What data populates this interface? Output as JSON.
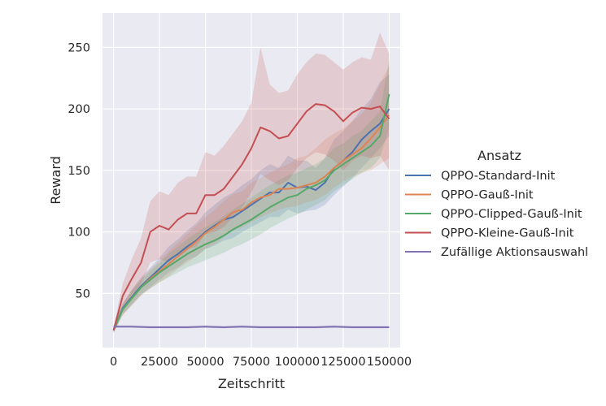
{
  "chart_data": {
    "type": "line",
    "xlabel": "Zeitschritt",
    "ylabel": "Reward",
    "xlim": [
      -6000,
      156000
    ],
    "ylim": [
      6,
      278
    ],
    "xticks": [
      0,
      25000,
      50000,
      75000,
      100000,
      125000,
      150000
    ],
    "yticks": [
      50,
      100,
      150,
      200,
      250
    ],
    "grid": true,
    "legend": {
      "title": "Ansatz",
      "placement": "right"
    },
    "series": [
      {
        "name": "QPPO-Standard-Init",
        "color": "#4c72b0",
        "x": [
          0,
          5000,
          10000,
          15000,
          20000,
          25000,
          30000,
          35000,
          40000,
          45000,
          50000,
          55000,
          60000,
          65000,
          70000,
          75000,
          80000,
          85000,
          90000,
          95000,
          100000,
          105000,
          110000,
          115000,
          120000,
          125000,
          130000,
          135000,
          140000,
          145000,
          150000
        ],
        "values": [
          20,
          38,
          47,
          56,
          63,
          70,
          77,
          82,
          88,
          93,
          100,
          105,
          110,
          112,
          117,
          122,
          127,
          132,
          132,
          140,
          136,
          137,
          134,
          140,
          152,
          158,
          165,
          175,
          182,
          188,
          200
        ],
        "lower": [
          18,
          33,
          41,
          49,
          55,
          61,
          67,
          71,
          77,
          80,
          86,
          89,
          93,
          95,
          100,
          104,
          108,
          112,
          112,
          118,
          115,
          117,
          118,
          122,
          130,
          137,
          144,
          152,
          160,
          168,
          178
        ],
        "upper": [
          22,
          42,
          53,
          63,
          71,
          79,
          88,
          94,
          101,
          107,
          116,
          122,
          128,
          132,
          138,
          143,
          150,
          155,
          152,
          162,
          158,
          158,
          152,
          160,
          175,
          182,
          190,
          200,
          208,
          222,
          228
        ]
      },
      {
        "name": "QPPO-Gauß-Init",
        "color": "#dd8452",
        "x": [
          0,
          5000,
          10000,
          15000,
          20000,
          25000,
          30000,
          35000,
          40000,
          45000,
          50000,
          55000,
          60000,
          65000,
          70000,
          75000,
          80000,
          85000,
          90000,
          95000,
          100000,
          105000,
          110000,
          115000,
          120000,
          125000,
          130000,
          135000,
          140000,
          145000,
          150000
        ],
        "values": [
          20,
          37,
          46,
          55,
          62,
          68,
          74,
          80,
          86,
          92,
          99,
          104,
          110,
          116,
          118,
          124,
          128,
          130,
          135,
          135,
          136,
          138,
          140,
          145,
          152,
          158,
          163,
          168,
          176,
          185,
          195
        ],
        "lower": [
          18,
          32,
          40,
          48,
          54,
          59,
          64,
          70,
          75,
          80,
          86,
          90,
          96,
          101,
          104,
          108,
          112,
          115,
          118,
          120,
          121,
          124,
          126,
          130,
          136,
          141,
          145,
          148,
          150,
          155,
          160
        ],
        "upper": [
          22,
          42,
          53,
          62,
          70,
          77,
          84,
          91,
          98,
          105,
          112,
          118,
          125,
          131,
          133,
          140,
          144,
          148,
          152,
          155,
          160,
          162,
          168,
          175,
          180,
          184,
          190,
          196,
          205,
          220,
          235
        ]
      },
      {
        "name": "QPPO-Clipped-Gauß-Init",
        "color": "#55a868",
        "x": [
          0,
          5000,
          10000,
          15000,
          20000,
          25000,
          30000,
          35000,
          40000,
          45000,
          50000,
          55000,
          60000,
          65000,
          70000,
          75000,
          80000,
          85000,
          90000,
          95000,
          100000,
          105000,
          110000,
          115000,
          120000,
          125000,
          130000,
          135000,
          140000,
          145000,
          150000
        ],
        "values": [
          20,
          37,
          46,
          55,
          61,
          67,
          72,
          77,
          82,
          86,
          90,
          93,
          97,
          102,
          106,
          110,
          115,
          120,
          124,
          128,
          130,
          135,
          138,
          142,
          150,
          155,
          160,
          165,
          170,
          178,
          212
        ],
        "lower": [
          18,
          33,
          41,
          49,
          54,
          59,
          63,
          67,
          71,
          74,
          77,
          80,
          83,
          87,
          90,
          94,
          98,
          103,
          107,
          111,
          114,
          118,
          122,
          126,
          133,
          138,
          143,
          148,
          152,
          160,
          185
        ],
        "upper": [
          22,
          41,
          52,
          61,
          68,
          75,
          82,
          88,
          94,
          99,
          104,
          108,
          113,
          118,
          123,
          128,
          133,
          138,
          142,
          146,
          148,
          152,
          155,
          160,
          168,
          172,
          178,
          182,
          190,
          198,
          240
        ]
      },
      {
        "name": "QPPO-Kleine-Gauß-Init",
        "color": "#c44e52",
        "x": [
          0,
          5000,
          10000,
          15000,
          20000,
          25000,
          30000,
          35000,
          40000,
          45000,
          50000,
          55000,
          60000,
          65000,
          70000,
          75000,
          80000,
          85000,
          90000,
          95000,
          100000,
          105000,
          110000,
          115000,
          120000,
          125000,
          130000,
          135000,
          140000,
          145000,
          150000
        ],
        "values": [
          20,
          48,
          62,
          75,
          100,
          105,
          102,
          110,
          115,
          115,
          130,
          130,
          135,
          145,
          155,
          168,
          185,
          182,
          176,
          178,
          188,
          198,
          204,
          203,
          198,
          190,
          197,
          201,
          200,
          202,
          192
        ],
        "lower": [
          18,
          38,
          48,
          58,
          75,
          78,
          75,
          82,
          86,
          88,
          98,
          100,
          104,
          112,
          120,
          132,
          147,
          142,
          138,
          142,
          152,
          160,
          165,
          163,
          158,
          150,
          158,
          162,
          160,
          162,
          150
        ],
        "upper": [
          22,
          58,
          78,
          95,
          125,
          133,
          130,
          140,
          145,
          145,
          165,
          162,
          170,
          180,
          190,
          205,
          250,
          220,
          213,
          215,
          228,
          238,
          245,
          244,
          238,
          232,
          238,
          242,
          240,
          262,
          245
        ]
      },
      {
        "name": "Zufällige Aktionsauswahl",
        "color": "#8172b3",
        "x": [
          0,
          10000,
          20000,
          30000,
          40000,
          50000,
          60000,
          70000,
          80000,
          90000,
          100000,
          110000,
          120000,
          130000,
          140000,
          150000
        ],
        "values": [
          23,
          23,
          22.5,
          22.5,
          22.5,
          23,
          22.5,
          23,
          22.5,
          22.5,
          22.5,
          22.5,
          23,
          22.5,
          22.5,
          22.5
        ],
        "lower": [
          22,
          22,
          21.5,
          21.5,
          21.5,
          22,
          21.5,
          22,
          21.5,
          21.5,
          21.5,
          21.5,
          22,
          21.5,
          21.5,
          21.5
        ],
        "upper": [
          24,
          24,
          23.5,
          23.5,
          23.5,
          24,
          23.5,
          24,
          23.5,
          23.5,
          23.5,
          23.5,
          24,
          23.5,
          23.5,
          23.5
        ]
      }
    ]
  }
}
